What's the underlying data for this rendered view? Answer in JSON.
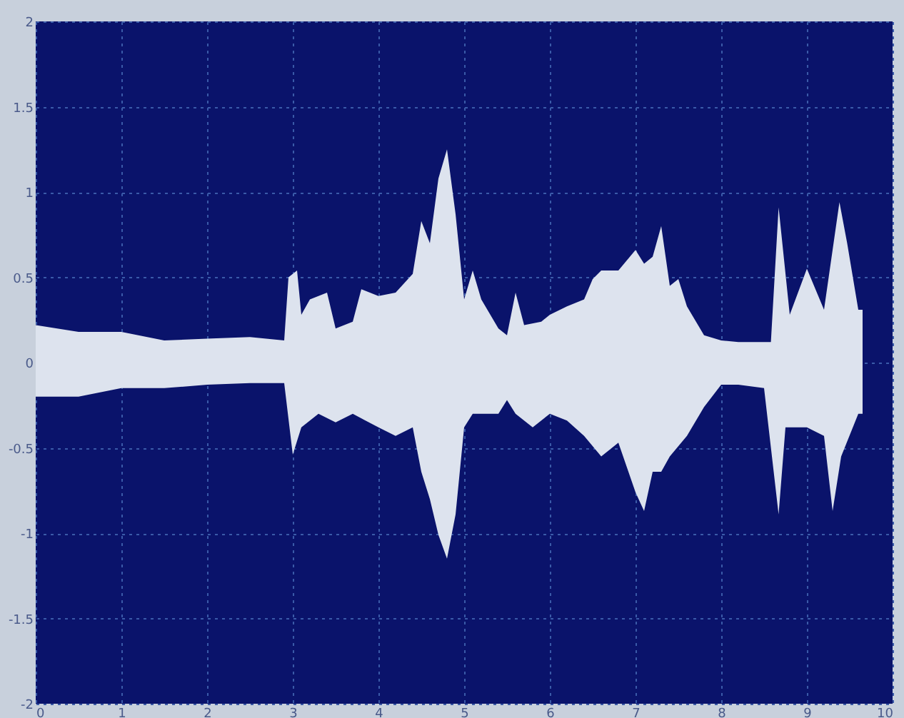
{
  "chart_data": {
    "type": "area",
    "xlim": [
      0,
      10
    ],
    "xticks": [
      0,
      1,
      2,
      3,
      4,
      5,
      6,
      7,
      8,
      9,
      10
    ],
    "ylim": [
      -2,
      2
    ],
    "yticks": [
      -2,
      -1.5,
      -1,
      -0.5,
      0,
      0.5,
      1,
      1.5,
      2
    ],
    "grid": true,
    "series": [
      {
        "color": "#dde3ee",
        "x": [
          0,
          0.5,
          1,
          1.5,
          2,
          2.5,
          2.9,
          2.95,
          3.05,
          3.1,
          3.2,
          3.4,
          3.5,
          3.7,
          3.8,
          4.0,
          4.2,
          4.4,
          4.5,
          4.6,
          4.7,
          4.8,
          4.9,
          5.0,
          5.1,
          5.2,
          5.4,
          5.5,
          5.6,
          5.7,
          5.9,
          6.0,
          6.2,
          6.4,
          6.5,
          6.6,
          6.8,
          7.0,
          7.1,
          7.2,
          7.3,
          7.4,
          7.5,
          7.6,
          7.8,
          8.0,
          8.2,
          8.58,
          8.67,
          8.8,
          9.0,
          9.2,
          9.38,
          9.47,
          9.6,
          9.65
        ],
        "values": [
          0.22,
          0.18,
          0.18,
          0.13,
          0.14,
          0.15,
          0.13,
          0.5,
          0.54,
          0.28,
          0.37,
          0.41,
          0.2,
          0.24,
          0.43,
          0.39,
          0.41,
          0.52,
          0.83,
          0.7,
          1.08,
          1.25,
          0.87,
          0.37,
          0.54,
          0.37,
          0.2,
          0.16,
          0.41,
          0.22,
          0.24,
          0.28,
          0.33,
          0.37,
          0.49,
          0.54,
          0.54,
          0.66,
          0.58,
          0.62,
          0.8,
          0.45,
          0.49,
          0.33,
          0.16,
          0.13,
          0.12,
          0.12,
          0.91,
          0.28,
          0.55,
          0.31,
          0.94,
          0.7,
          0.31,
          0.31
        ]
      },
      {
        "color": "#dde3ee",
        "x": [
          0,
          0.5,
          1,
          1.5,
          2,
          2.5,
          2.9,
          3.0,
          3.1,
          3.3,
          3.5,
          3.7,
          4.0,
          4.2,
          4.4,
          4.5,
          4.6,
          4.7,
          4.8,
          4.9,
          5.0,
          5.1,
          5.4,
          5.5,
          5.6,
          5.8,
          6.0,
          6.2,
          6.4,
          6.6,
          6.8,
          7.0,
          7.1,
          7.2,
          7.3,
          7.4,
          7.6,
          7.8,
          8.0,
          8.2,
          8.5,
          8.67,
          8.75,
          9.0,
          9.2,
          9.3,
          9.4,
          9.6,
          9.65
        ],
        "values": [
          -0.2,
          -0.2,
          -0.15,
          -0.15,
          -0.13,
          -0.12,
          -0.12,
          -0.54,
          -0.38,
          -0.3,
          -0.35,
          -0.3,
          -0.38,
          -0.43,
          -0.38,
          -0.64,
          -0.8,
          -1.01,
          -1.15,
          -0.89,
          -0.38,
          -0.3,
          -0.3,
          -0.22,
          -0.3,
          -0.38,
          -0.3,
          -0.34,
          -0.43,
          -0.55,
          -0.47,
          -0.76,
          -0.87,
          -0.64,
          -0.64,
          -0.55,
          -0.43,
          -0.26,
          -0.13,
          -0.13,
          -0.15,
          -0.89,
          -0.38,
          -0.38,
          -0.43,
          -0.87,
          -0.55,
          -0.3,
          -0.3
        ]
      }
    ]
  }
}
